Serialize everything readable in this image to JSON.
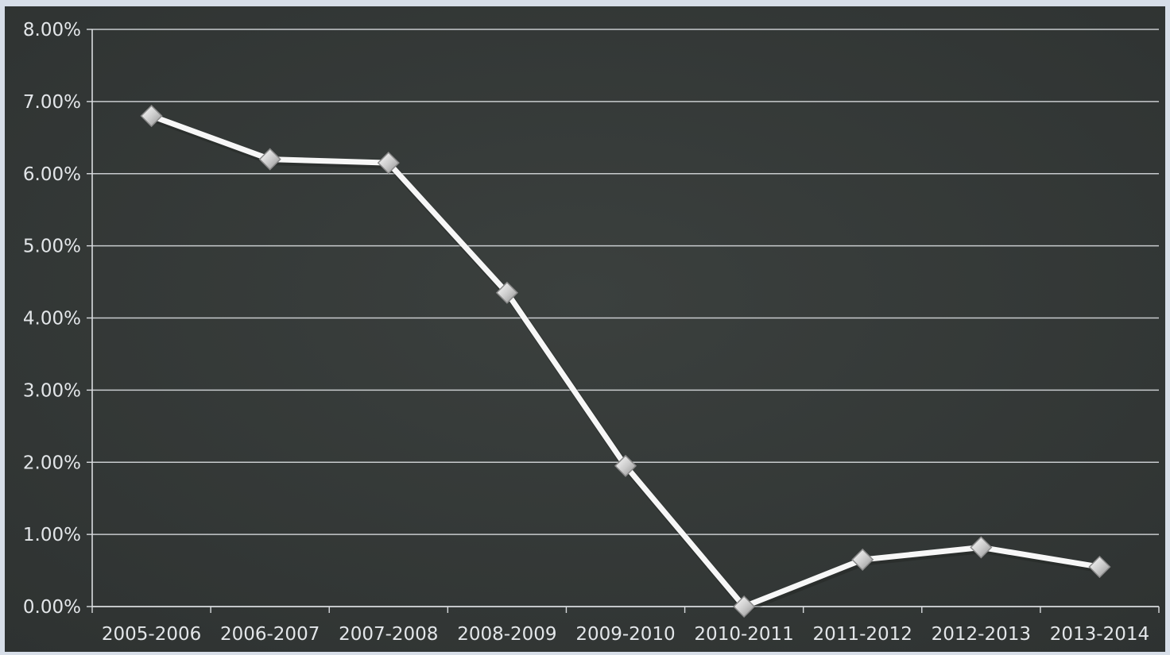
{
  "chart_data": {
    "type": "line",
    "title": "",
    "xlabel": "",
    "ylabel": "",
    "categories": [
      "2005-2006",
      "2006-2007",
      "2007-2008",
      "2008-2009",
      "2009-2010",
      "2010-2011",
      "2011-2012",
      "2012-2013",
      "2013-2014"
    ],
    "series": [
      {
        "values": [
          6.8,
          6.2,
          6.15,
          4.35,
          1.95,
          0.0,
          0.65,
          0.82,
          0.55
        ]
      }
    ],
    "ylim": [
      0,
      8
    ],
    "yticks": [
      0,
      1,
      2,
      3,
      4,
      5,
      6,
      7,
      8
    ],
    "ytick_labels": [
      "0.00%",
      "1.00%",
      "2.00%",
      "3.00%",
      "4.00%",
      "5.00%",
      "6.00%",
      "7.00%",
      "8.00%"
    ],
    "grid": "horizontal",
    "legend": "none",
    "colors": {
      "plot_background": "#353a38",
      "gridline": "#d9dcdf",
      "series_line": "#f7f7f7",
      "marker_fill": "#d9d9d9",
      "marker_stroke": "#8a8a8a",
      "tick_text": "#e3e6e9"
    }
  }
}
